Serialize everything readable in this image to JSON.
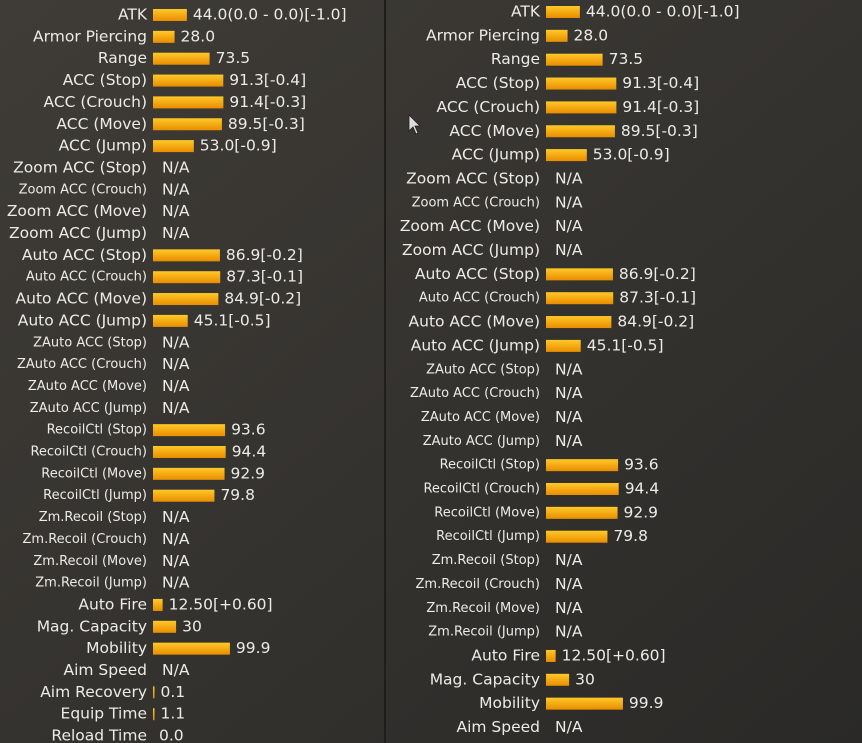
{
  "panels": [
    {
      "rows": [
        {
          "label": "ATK",
          "value": 44.0,
          "text": "44.0(0.0 - 0.0)[-1.0]"
        },
        {
          "label": "Armor Piercing",
          "value": 28.0,
          "text": "28.0"
        },
        {
          "label": "Range",
          "value": 73.5,
          "text": "73.5"
        },
        {
          "label": "ACC (Stop)",
          "value": 91.3,
          "text": "91.3[-0.4]"
        },
        {
          "label": "ACC (Crouch)",
          "value": 91.4,
          "text": "91.4[-0.3]"
        },
        {
          "label": "ACC (Move)",
          "value": 89.5,
          "text": "89.5[-0.3]"
        },
        {
          "label": "ACC (Jump)",
          "value": 53.0,
          "text": "53.0[-0.9]"
        },
        {
          "label": "Zoom ACC (Stop)",
          "text": "N/A"
        },
        {
          "label": "Zoom ACC (Crouch)",
          "text": "N/A"
        },
        {
          "label": "Zoom ACC (Move)",
          "text": "N/A"
        },
        {
          "label": "Zoom ACC (Jump)",
          "text": "N/A"
        },
        {
          "label": "Auto ACC (Stop)",
          "value": 86.9,
          "text": "86.9[-0.2]"
        },
        {
          "label": "Auto ACC (Crouch)",
          "value": 87.3,
          "text": "87.3[-0.1]"
        },
        {
          "label": "Auto ACC (Move)",
          "value": 84.9,
          "text": "84.9[-0.2]"
        },
        {
          "label": "Auto ACC (Jump)",
          "value": 45.1,
          "text": "45.1[-0.5]"
        },
        {
          "label": "ZAuto ACC (Stop)",
          "text": "N/A"
        },
        {
          "label": "ZAuto ACC (Crouch)",
          "text": "N/A"
        },
        {
          "label": "ZAuto ACC (Move)",
          "text": "N/A"
        },
        {
          "label": "ZAuto ACC (Jump)",
          "text": "N/A"
        },
        {
          "label": "RecoilCtl (Stop)",
          "value": 93.6,
          "text": "93.6"
        },
        {
          "label": "RecoilCtl (Crouch)",
          "value": 94.4,
          "text": "94.4"
        },
        {
          "label": "RecoilCtl (Move)",
          "value": 92.9,
          "text": "92.9"
        },
        {
          "label": "RecoilCtl (Jump)",
          "value": 79.8,
          "text": "79.8"
        },
        {
          "label": "Zm.Recoil (Stop)",
          "text": "N/A"
        },
        {
          "label": "Zm.Recoil (Crouch)",
          "text": "N/A"
        },
        {
          "label": "Zm.Recoil (Move)",
          "text": "N/A"
        },
        {
          "label": "Zm.Recoil (Jump)",
          "text": "N/A"
        },
        {
          "label": "Auto Fire",
          "value": 12.5,
          "text": "12.50[+0.60]"
        },
        {
          "label": "Mag. Capacity",
          "value": 30,
          "text": "30"
        },
        {
          "label": "Mobility",
          "value": 99.9,
          "text": "99.9"
        },
        {
          "label": "Aim Speed",
          "text": "N/A"
        },
        {
          "label": "Aim Recovery",
          "value": 0.1,
          "text": "0.1"
        },
        {
          "label": "Equip Time",
          "value": 1.1,
          "text": "1.1"
        },
        {
          "label": "Reload Time",
          "value": 0.0,
          "text": "0.0"
        }
      ]
    },
    {
      "rows": [
        {
          "label": "ATK",
          "value": 44.0,
          "text": "44.0(0.0 - 0.0)[-1.0]"
        },
        {
          "label": "Armor Piercing",
          "value": 28.0,
          "text": "28.0"
        },
        {
          "label": "Range",
          "value": 73.5,
          "text": "73.5"
        },
        {
          "label": "ACC (Stop)",
          "value": 91.3,
          "text": "91.3[-0.4]"
        },
        {
          "label": "ACC (Crouch)",
          "value": 91.4,
          "text": "91.4[-0.3]"
        },
        {
          "label": "ACC (Move)",
          "value": 89.5,
          "text": "89.5[-0.3]"
        },
        {
          "label": "ACC (Jump)",
          "value": 53.0,
          "text": "53.0[-0.9]"
        },
        {
          "label": "Zoom ACC (Stop)",
          "text": "N/A"
        },
        {
          "label": "Zoom ACC (Crouch)",
          "text": "N/A"
        },
        {
          "label": "Zoom ACC (Move)",
          "text": "N/A"
        },
        {
          "label": "Zoom ACC (Jump)",
          "text": "N/A"
        },
        {
          "label": "Auto ACC (Stop)",
          "value": 86.9,
          "text": "86.9[-0.2]"
        },
        {
          "label": "Auto ACC (Crouch)",
          "value": 87.3,
          "text": "87.3[-0.1]"
        },
        {
          "label": "Auto ACC (Move)",
          "value": 84.9,
          "text": "84.9[-0.2]"
        },
        {
          "label": "Auto ACC (Jump)",
          "value": 45.1,
          "text": "45.1[-0.5]"
        },
        {
          "label": "ZAuto ACC (Stop)",
          "text": "N/A"
        },
        {
          "label": "ZAuto ACC (Crouch)",
          "text": "N/A"
        },
        {
          "label": "ZAuto ACC (Move)",
          "text": "N/A"
        },
        {
          "label": "ZAuto ACC (Jump)",
          "text": "N/A"
        },
        {
          "label": "RecoilCtl (Stop)",
          "value": 93.6,
          "text": "93.6"
        },
        {
          "label": "RecoilCtl (Crouch)",
          "value": 94.4,
          "text": "94.4"
        },
        {
          "label": "RecoilCtl (Move)",
          "value": 92.9,
          "text": "92.9"
        },
        {
          "label": "RecoilCtl (Jump)",
          "value": 79.8,
          "text": "79.8"
        },
        {
          "label": "Zm.Recoil (Stop)",
          "text": "N/A"
        },
        {
          "label": "Zm.Recoil (Crouch)",
          "text": "N/A"
        },
        {
          "label": "Zm.Recoil (Move)",
          "text": "N/A"
        },
        {
          "label": "Zm.Recoil (Jump)",
          "text": "N/A"
        },
        {
          "label": "Auto Fire",
          "value": 12.5,
          "text": "12.50[+0.60]"
        },
        {
          "label": "Mag. Capacity",
          "value": 30,
          "text": "30"
        },
        {
          "label": "Mobility",
          "value": 99.9,
          "text": "99.9"
        },
        {
          "label": "Aim Speed",
          "text": "N/A"
        }
      ]
    }
  ]
}
